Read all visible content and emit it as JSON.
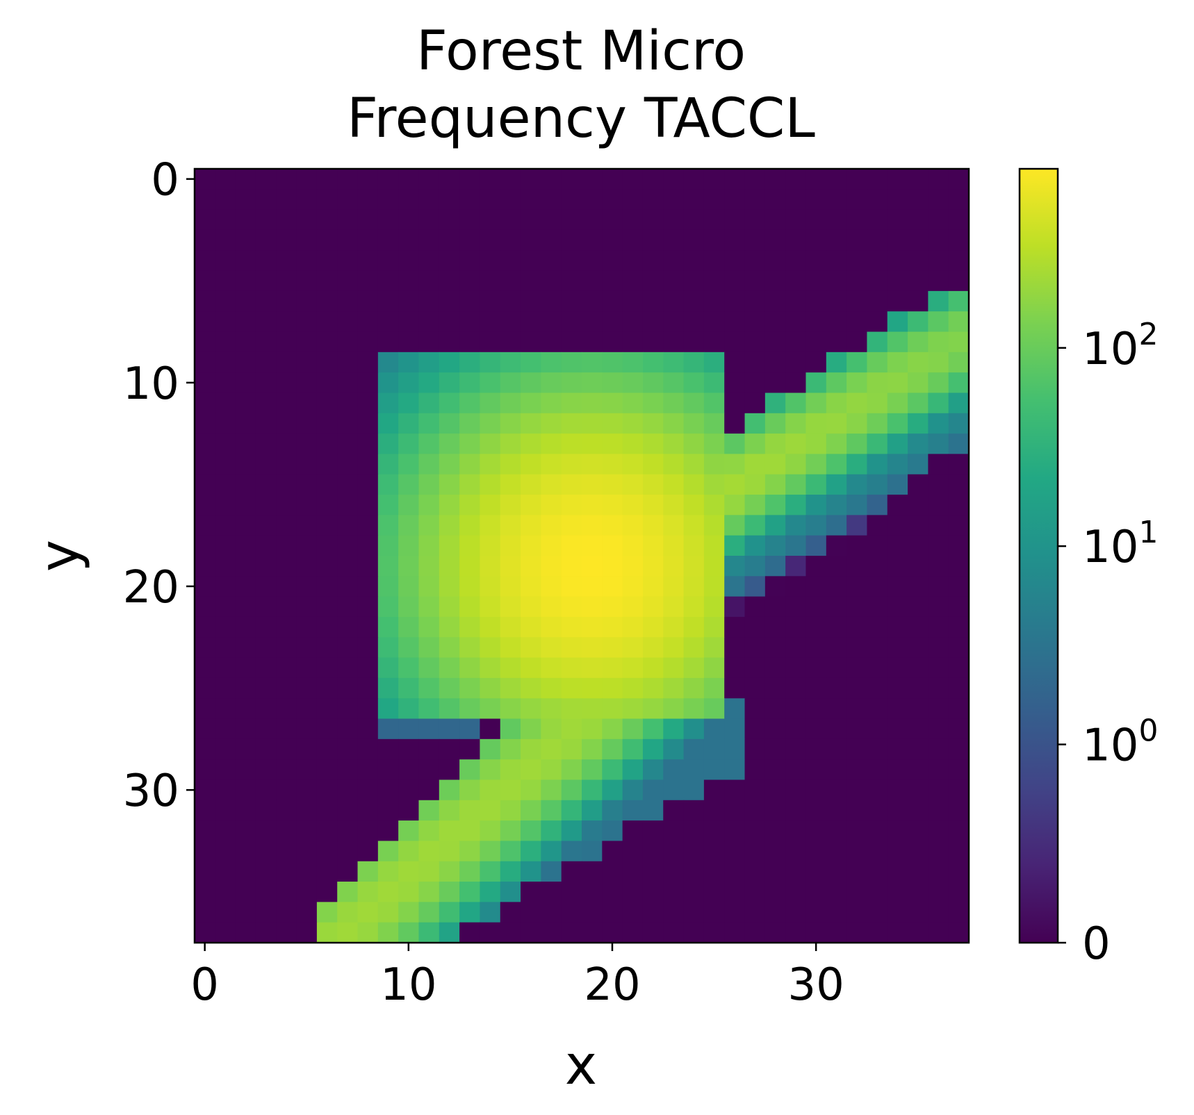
{
  "chart_data": {
    "type": "heatmap",
    "title_line1": "Forest Micro",
    "title_line2": "Frequency TACCL",
    "xlabel": "x",
    "ylabel": "y",
    "grid_size": [
      38,
      38
    ],
    "x_range": [
      0,
      37
    ],
    "y_range": [
      0,
      37
    ],
    "y_inverted": true,
    "x_ticks": [
      "0",
      "10",
      "20",
      "30"
    ],
    "x_tick_values": [
      0,
      10,
      20,
      30
    ],
    "y_ticks": [
      "0",
      "10",
      "20",
      "30"
    ],
    "y_tick_values": [
      0,
      10,
      20,
      30
    ],
    "colorscale": "viridis",
    "color_scale_type": "symlog",
    "colorbar_range": [
      0,
      800
    ],
    "colorbar_ticks": [
      {
        "base": "0",
        "exp": "",
        "value": 0
      },
      {
        "base": "10",
        "exp": "0",
        "value": 1
      },
      {
        "base": "10",
        "exp": "1",
        "value": 10
      },
      {
        "base": "10",
        "exp": "2",
        "value": 100
      }
    ],
    "peak": {
      "x": 19,
      "y": 19,
      "value": 800
    },
    "background_value": 0,
    "regions": [
      "blob: x 9–25, y 9–26, peak near (19,19)",
      "arm to upper-right: from (25,15) to (37,6)",
      "arm to lower-left: from (17,27) to (6,37)"
    ]
  }
}
